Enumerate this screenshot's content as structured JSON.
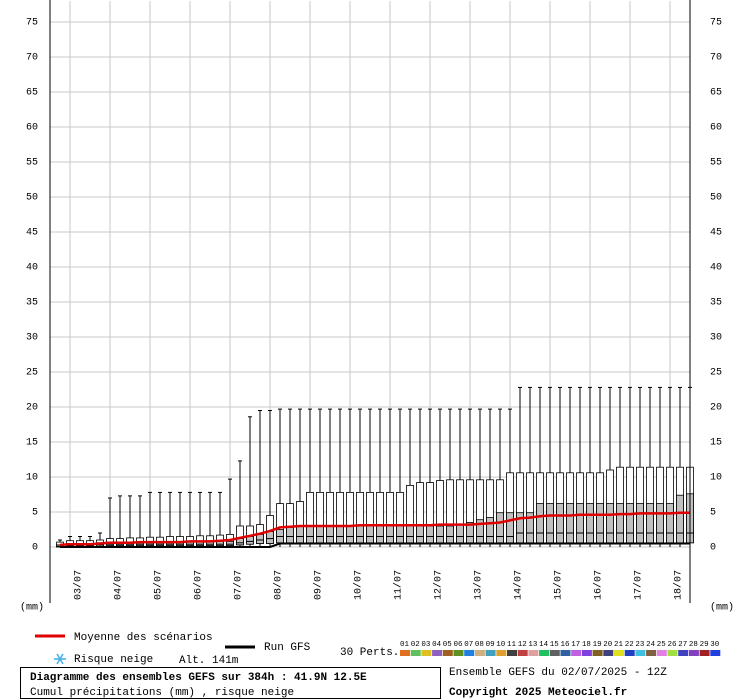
{
  "chart_data": {
    "type": "box",
    "title": "Diagramme des ensembles GEFS sur 384h : 41.9N 12.5E",
    "subtitle": "Cumul précipitations (mm) , risque neige",
    "run_info": "Ensemble GEFS du 02/07/2025 - 12Z",
    "copyright": "Copyright 2025 Meteociel.fr",
    "y_unit_left": "(mm)",
    "y_unit_right": "(mm)",
    "snow_label": "Risque neige",
    "altitude": "Alt. 141m",
    "members_label": "30 Perts.",
    "xlim": [
      0,
      384
    ],
    "ylim": [
      -8,
      78
    ],
    "yticks": [
      0,
      5,
      10,
      15,
      20,
      25,
      30,
      35,
      40,
      45,
      50,
      55,
      60,
      65,
      70,
      75
    ],
    "xticks": [
      {
        "value": 12,
        "label": "03/07"
      },
      {
        "value": 36,
        "label": "04/07"
      },
      {
        "value": 60,
        "label": "05/07"
      },
      {
        "value": 84,
        "label": "06/07"
      },
      {
        "value": 108,
        "label": "07/07"
      },
      {
        "value": 132,
        "label": "08/07"
      },
      {
        "value": 156,
        "label": "09/07"
      },
      {
        "value": 180,
        "label": "10/07"
      },
      {
        "value": 204,
        "label": "11/07"
      },
      {
        "value": 228,
        "label": "12/07"
      },
      {
        "value": 252,
        "label": "13/07"
      },
      {
        "value": 276,
        "label": "14/07"
      },
      {
        "value": 300,
        "label": "15/07"
      },
      {
        "value": 324,
        "label": "16/07"
      },
      {
        "value": 348,
        "label": "17/07"
      },
      {
        "value": 372,
        "label": "18/07"
      }
    ],
    "grid": true,
    "x": [
      6,
      12,
      18,
      24,
      30,
      36,
      42,
      48,
      54,
      60,
      66,
      72,
      78,
      84,
      90,
      96,
      102,
      108,
      114,
      120,
      126,
      132,
      138,
      144,
      150,
      156,
      162,
      168,
      174,
      180,
      186,
      192,
      198,
      204,
      210,
      216,
      222,
      228,
      234,
      240,
      246,
      252,
      258,
      264,
      270,
      276,
      282,
      288,
      294,
      300,
      306,
      312,
      318,
      324,
      330,
      336,
      342,
      348,
      354,
      360,
      366,
      372,
      378,
      384
    ],
    "boxes": {
      "min": [
        0,
        0,
        0,
        0,
        0,
        0,
        0,
        0,
        0,
        0,
        0,
        0,
        0,
        0,
        0,
        0,
        0,
        0,
        0,
        0,
        0,
        0,
        0,
        0,
        0,
        0,
        0,
        0,
        0,
        0,
        0,
        0,
        0,
        0,
        0,
        0,
        0,
        0,
        0,
        0,
        0,
        0,
        0,
        0,
        0,
        0,
        0,
        0,
        0,
        0,
        0,
        0,
        0,
        0,
        0,
        0,
        0,
        0,
        0,
        0,
        0,
        0,
        0,
        0
      ],
      "q1": [
        0,
        0.1,
        0.1,
        0.1,
        0.1,
        0.2,
        0.2,
        0.2,
        0.2,
        0.2,
        0.2,
        0.2,
        0.2,
        0.2,
        0.2,
        0.2,
        0.2,
        0.2,
        0.3,
        0.4,
        0.5,
        0.5,
        0.6,
        0.6,
        0.6,
        0.6,
        0.6,
        0.6,
        0.6,
        0.6,
        0.6,
        0.6,
        0.6,
        0.6,
        0.6,
        0.6,
        0.6,
        0.6,
        0.6,
        0.6,
        0.6,
        0.6,
        0.6,
        0.6,
        0.6,
        0.6,
        0.6,
        0.6,
        0.6,
        0.6,
        0.6,
        0.6,
        0.6,
        0.6,
        0.6,
        0.6,
        0.6,
        0.6,
        0.6,
        0.6,
        0.6,
        0.6,
        0.6,
        0.6
      ],
      "median": [
        0.1,
        0.2,
        0.2,
        0.2,
        0.3,
        0.4,
        0.4,
        0.4,
        0.4,
        0.4,
        0.4,
        0.4,
        0.4,
        0.4,
        0.4,
        0.4,
        0.4,
        0.4,
        0.6,
        0.8,
        1,
        1.2,
        1.5,
        1.5,
        1.5,
        1.5,
        1.5,
        1.5,
        1.5,
        1.5,
        1.5,
        1.5,
        1.5,
        1.5,
        1.5,
        1.5,
        1.5,
        1.5,
        1.5,
        1.5,
        1.5,
        1.5,
        1.5,
        1.5,
        1.5,
        1.5,
        2,
        2,
        2,
        2,
        2,
        2,
        2,
        2,
        2,
        2,
        2,
        2,
        2,
        2,
        2,
        2,
        2,
        2
      ],
      "q3": [
        0.3,
        0.5,
        0.5,
        0.5,
        0.6,
        0.7,
        0.7,
        0.7,
        0.7,
        0.7,
        0.7,
        0.7,
        0.7,
        0.8,
        0.8,
        0.8,
        0.8,
        0.8,
        1.2,
        1.5,
        1.8,
        2.2,
        2.5,
        2.8,
        3,
        3,
        3,
        3,
        3,
        3,
        3,
        3,
        3,
        3,
        3,
        3,
        3,
        3,
        3,
        3,
        3.2,
        3.5,
        3.9,
        4.2,
        4.9,
        4.9,
        4.9,
        4.9,
        6.2,
        6.2,
        6.2,
        6.2,
        6.2,
        6.2,
        6.2,
        6.2,
        6.2,
        6.2,
        6.2,
        6.2,
        6.2,
        6.2,
        7.4,
        7.6
      ],
      "p90": [
        0.7,
        0.9,
        0.9,
        0.9,
        1,
        1.2,
        1.2,
        1.3,
        1.3,
        1.4,
        1.4,
        1.5,
        1.5,
        1.5,
        1.6,
        1.6,
        1.7,
        1.8,
        3,
        3,
        3.2,
        4.5,
        6.2,
        6.2,
        6.5,
        7.8,
        7.8,
        7.8,
        7.8,
        7.8,
        7.8,
        7.8,
        7.8,
        7.8,
        7.8,
        8.8,
        9.2,
        9.2,
        9.5,
        9.6,
        9.6,
        9.6,
        9.6,
        9.6,
        9.6,
        10.6,
        10.6,
        10.6,
        10.6,
        10.6,
        10.6,
        10.6,
        10.6,
        10.6,
        10.6,
        11,
        11.4,
        11.4,
        11.4,
        11.4,
        11.4,
        11.4,
        11.4,
        11.4
      ],
      "max": [
        1,
        1.5,
        1.5,
        1.5,
        2,
        7,
        7.3,
        7.3,
        7.3,
        7.8,
        7.8,
        7.8,
        7.8,
        7.8,
        7.8,
        7.8,
        7.8,
        9.7,
        12.3,
        18.6,
        19.5,
        19.5,
        19.7,
        19.7,
        19.7,
        19.7,
        19.7,
        19.7,
        19.7,
        19.7,
        19.7,
        19.7,
        19.7,
        19.7,
        19.7,
        19.7,
        19.7,
        19.7,
        19.7,
        19.7,
        19.7,
        19.7,
        19.7,
        19.7,
        19.7,
        19.7,
        22.8,
        22.8,
        22.8,
        22.8,
        22.8,
        22.8,
        22.8,
        22.8,
        22.8,
        22.8,
        22.8,
        22.8,
        22.8,
        22.8,
        22.8,
        22.8,
        22.8,
        22.8
      ]
    },
    "series": [
      {
        "name": "Moyenne des scénarios",
        "color": "#e00000",
        "values": [
          0.3,
          0.4,
          0.4,
          0.4,
          0.5,
          0.6,
          0.6,
          0.6,
          0.7,
          0.7,
          0.7,
          0.7,
          0.7,
          0.8,
          0.8,
          0.8,
          0.9,
          1,
          1.3,
          1.6,
          1.9,
          2.3,
          2.8,
          2.9,
          3,
          3,
          3,
          3,
          3,
          3,
          3.1,
          3.1,
          3.1,
          3.1,
          3.1,
          3.1,
          3.1,
          3.1,
          3.2,
          3.2,
          3.2,
          3.2,
          3.3,
          3.4,
          3.5,
          3.8,
          4.1,
          4.2,
          4.4,
          4.5,
          4.5,
          4.5,
          4.6,
          4.6,
          4.6,
          4.6,
          4.7,
          4.7,
          4.8,
          4.8,
          4.8,
          4.8,
          4.9,
          4.9
        ]
      },
      {
        "name": "Run GFS",
        "color": "#000000",
        "values": [
          0,
          0,
          0,
          0,
          0,
          0,
          0,
          0,
          0,
          0,
          0,
          0,
          0,
          0,
          0,
          0,
          0,
          0,
          0,
          0,
          0,
          0,
          0.5,
          0.5,
          0.5,
          0.5,
          0.5,
          0.5,
          0.5,
          0.5,
          0.5,
          0.5,
          0.5,
          0.5,
          0.5,
          0.5,
          0.5,
          0.5,
          0.5,
          0.5,
          0.5,
          0.5,
          0.5,
          0.5,
          0.5,
          0.5,
          0.5,
          0.5,
          0.5,
          0.5,
          0.5,
          0.5,
          0.5,
          0.5,
          0.5,
          0.5,
          0.5,
          0.5,
          0.5,
          0.5,
          0.5,
          0.5,
          0.5,
          0.5
        ]
      }
    ],
    "box_colors": {
      "outer": "#ffffff",
      "inner": "#c0c0c0",
      "stroke": "#000000"
    },
    "members": [
      {
        "name": "01",
        "color": "#e07020"
      },
      {
        "name": "02",
        "color": "#60c060"
      },
      {
        "name": "03",
        "color": "#e0c020"
      },
      {
        "name": "04",
        "color": "#9060c0"
      },
      {
        "name": "05",
        "color": "#a06020"
      },
      {
        "name": "06",
        "color": "#609020"
      },
      {
        "name": "07",
        "color": "#2080e0"
      },
      {
        "name": "08",
        "color": "#d0b080"
      },
      {
        "name": "09",
        "color": "#40a0c0"
      },
      {
        "name": "10",
        "color": "#e0a030"
      },
      {
        "name": "11",
        "color": "#404040"
      },
      {
        "name": "12",
        "color": "#c04040"
      },
      {
        "name": "13",
        "color": "#e0a0a0"
      },
      {
        "name": "14",
        "color": "#20c060"
      },
      {
        "name": "15",
        "color": "#606060"
      },
      {
        "name": "16",
        "color": "#3060a0"
      },
      {
        "name": "17",
        "color": "#c060e0"
      },
      {
        "name": "18",
        "color": "#8040e0"
      },
      {
        "name": "19",
        "color": "#806020"
      },
      {
        "name": "20",
        "color": "#404080"
      },
      {
        "name": "21",
        "color": "#e0e020"
      },
      {
        "name": "22",
        "color": "#2040c0"
      },
      {
        "name": "23",
        "color": "#40c0e0"
      },
      {
        "name": "24",
        "color": "#806040"
      },
      {
        "name": "25",
        "color": "#e080e0"
      },
      {
        "name": "26",
        "color": "#a0e040"
      },
      {
        "name": "27",
        "color": "#4040c0"
      },
      {
        "name": "28",
        "color": "#8040c0"
      },
      {
        "name": "29",
        "color": "#a02020"
      },
      {
        "name": "30",
        "color": "#2040e0"
      }
    ]
  }
}
